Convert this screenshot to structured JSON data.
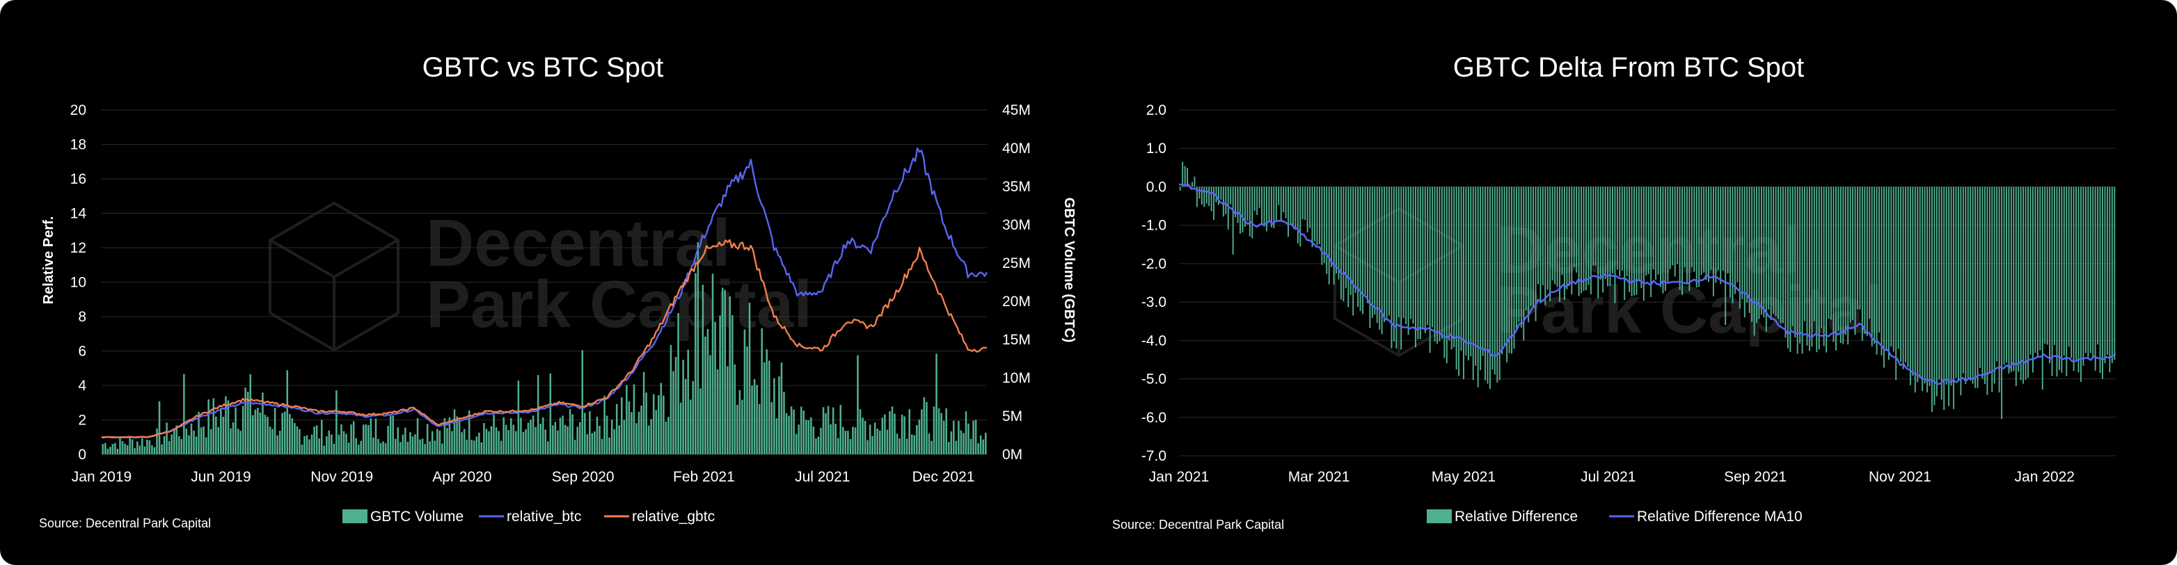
{
  "colors": {
    "background": "#000000",
    "grid": "#2a2a2a",
    "volume_bar": "#4fb091",
    "relative_btc": "#5865f2",
    "relative_gbtc": "#f07f4f",
    "delta_bar": "#4fb091",
    "delta_ma10": "#5865f2",
    "watermark": "#1e1e1e"
  },
  "watermark": {
    "line1": "Decentral",
    "line2": "Park Capital"
  },
  "chart_data": [
    {
      "type": "line",
      "title": "GBTC vs BTC Spot",
      "ylabel": "Relative Perf.",
      "y2label": "GBTC Volume (GBTC)",
      "source": "Source: Decentral Park Capital",
      "ylim": [
        0,
        20
      ],
      "y_ticks": [
        "0",
        "2",
        "4",
        "6",
        "8",
        "10",
        "12",
        "14",
        "16",
        "18",
        "20"
      ],
      "y2lim": [
        0,
        45000000
      ],
      "y2_ticks": [
        "0M",
        "5M",
        "10M",
        "15M",
        "20M",
        "25M",
        "30M",
        "35M",
        "40M",
        "45M"
      ],
      "x_ticks": [
        "Jan 2019",
        "Jun 2019",
        "Nov 2019",
        "Apr 2020",
        "Sep 2020",
        "Feb 2021",
        "Jul 2021",
        "Dec 2021"
      ],
      "legend_position": "bottom",
      "grid": true,
      "series": [
        {
          "name": "GBTC Volume",
          "type": "bar",
          "axis": "right",
          "color": "#4fb091",
          "x": [
            "2019-01",
            "2019-03",
            "2019-05",
            "2019-06",
            "2019-07",
            "2019-09",
            "2019-11",
            "2020-01",
            "2020-03",
            "2020-04",
            "2020-06",
            "2020-08",
            "2020-09",
            "2020-10",
            "2020-11",
            "2020-12",
            "2021-01",
            "2021-02",
            "2021-03",
            "2021-04",
            "2021-05",
            "2021-06",
            "2021-07",
            "2021-08",
            "2021-09",
            "2021-10",
            "2021-11",
            "2021-12",
            "2022-01"
          ],
          "values": [
            1500000,
            2000000,
            4500000,
            6000000,
            8000000,
            3500000,
            3000000,
            4000000,
            3800000,
            4500000,
            3500000,
            4000000,
            5000000,
            5500000,
            7000000,
            9000000,
            14000000,
            24000000,
            15000000,
            14000000,
            10000000,
            5000000,
            4500000,
            5000000,
            4500000,
            6000000,
            5500000,
            4500000,
            4000000
          ]
        },
        {
          "name": "relative_btc",
          "type": "line",
          "axis": "left",
          "color": "#5865f2",
          "x": [
            "2019-01",
            "2019-02",
            "2019-03",
            "2019-04",
            "2019-05",
            "2019-06",
            "2019-07",
            "2019-08",
            "2019-09",
            "2019-10",
            "2019-11",
            "2019-12",
            "2020-01",
            "2020-02",
            "2020-03",
            "2020-04",
            "2020-05",
            "2020-06",
            "2020-07",
            "2020-08",
            "2020-09",
            "2020-10",
            "2020-11",
            "2020-12",
            "2021-01",
            "2021-02",
            "2021-03",
            "2021-04",
            "2021-05",
            "2021-06",
            "2021-07",
            "2021-08",
            "2021-09",
            "2021-10",
            "2021-11",
            "2021-12",
            "2022-01"
          ],
          "values": [
            1.0,
            1.0,
            1.0,
            1.4,
            2.1,
            2.6,
            3.0,
            2.9,
            2.7,
            2.4,
            2.4,
            2.2,
            2.3,
            2.6,
            1.6,
            2.0,
            2.4,
            2.4,
            2.5,
            2.9,
            2.7,
            3.2,
            4.7,
            6.6,
            9.2,
            12.7,
            15.2,
            16.9,
            12.0,
            9.2,
            9.5,
            12.4,
            11.9,
            15.4,
            17.6,
            13.4,
            10.5
          ]
        },
        {
          "name": "relative_gbtc",
          "type": "line",
          "axis": "left",
          "color": "#f07f4f",
          "x": [
            "2019-01",
            "2019-02",
            "2019-03",
            "2019-04",
            "2019-05",
            "2019-06",
            "2019-07",
            "2019-08",
            "2019-09",
            "2019-10",
            "2019-11",
            "2019-12",
            "2020-01",
            "2020-02",
            "2020-03",
            "2020-04",
            "2020-05",
            "2020-06",
            "2020-07",
            "2020-08",
            "2020-09",
            "2020-10",
            "2020-11",
            "2020-12",
            "2021-01",
            "2021-02",
            "2021-03",
            "2021-04",
            "2021-05",
            "2021-06",
            "2021-07",
            "2021-08",
            "2021-09",
            "2021-10",
            "2021-11",
            "2021-12",
            "2022-01"
          ],
          "values": [
            1.0,
            1.0,
            1.0,
            1.4,
            2.2,
            2.8,
            3.2,
            3.0,
            2.8,
            2.5,
            2.5,
            2.3,
            2.4,
            2.7,
            1.7,
            2.1,
            2.5,
            2.5,
            2.6,
            3.0,
            2.8,
            3.3,
            4.8,
            6.9,
            9.5,
            11.8,
            12.2,
            12.1,
            8.0,
            6.3,
            6.1,
            7.8,
            7.4,
            9.3,
            11.8,
            8.9,
            6.1
          ]
        }
      ]
    },
    {
      "type": "bar",
      "title": "GBTC Delta From BTC Spot",
      "source": "Source: Decentral Park Capital",
      "ylim": [
        -7,
        2
      ],
      "y_ticks": [
        "-7.0",
        "-6.0",
        "-5.0",
        "-4.0",
        "-3.0",
        "-2.0",
        "-1.0",
        "0.0",
        "1.0",
        "2.0"
      ],
      "x_ticks": [
        "Jan 2021",
        "Mar 2021",
        "May 2021",
        "Jul 2021",
        "Sep 2021",
        "Nov 2021",
        "Jan 2022"
      ],
      "legend_position": "bottom",
      "grid": true,
      "series": [
        {
          "name": "Relative Difference",
          "type": "bar",
          "color": "#4fb091",
          "x": [
            "2021-01-01",
            "2021-01-15",
            "2021-02-01",
            "2021-02-15",
            "2021-03-01",
            "2021-03-15",
            "2021-04-01",
            "2021-04-15",
            "2021-05-01",
            "2021-05-15",
            "2021-06-01",
            "2021-06-15",
            "2021-07-01",
            "2021-07-15",
            "2021-08-01",
            "2021-08-15",
            "2021-09-01",
            "2021-09-15",
            "2021-10-01",
            "2021-10-15",
            "2021-11-01",
            "2021-11-15",
            "2021-12-01",
            "2021-12-15",
            "2022-01-01",
            "2022-01-15",
            "2022-01-31"
          ],
          "values": [
            0.3,
            -0.5,
            -1.0,
            -0.9,
            -1.6,
            -3.0,
            -3.8,
            -3.9,
            -4.6,
            -4.9,
            -3.0,
            -2.5,
            -2.4,
            -2.6,
            -2.4,
            -2.3,
            -3.2,
            -3.9,
            -3.9,
            -3.6,
            -4.7,
            -5.5,
            -5.2,
            -4.9,
            -4.5,
            -4.5,
            -4.6
          ]
        },
        {
          "name": "Relative Difference MA10",
          "type": "line",
          "color": "#5865f2",
          "x": [
            "2021-01-01",
            "2021-01-15",
            "2021-02-01",
            "2021-02-15",
            "2021-03-01",
            "2021-03-15",
            "2021-04-01",
            "2021-04-15",
            "2021-05-01",
            "2021-05-15",
            "2021-06-01",
            "2021-06-15",
            "2021-07-01",
            "2021-07-15",
            "2021-08-01",
            "2021-08-15",
            "2021-09-01",
            "2021-09-15",
            "2021-10-01",
            "2021-10-15",
            "2021-11-01",
            "2021-11-15",
            "2021-12-01",
            "2021-12-15",
            "2022-01-01",
            "2022-01-15",
            "2022-01-31"
          ],
          "values": [
            0.1,
            -0.2,
            -1.0,
            -0.9,
            -1.6,
            -2.5,
            -3.6,
            -3.7,
            -4.0,
            -4.4,
            -3.0,
            -2.5,
            -2.3,
            -2.5,
            -2.5,
            -2.3,
            -3.0,
            -3.8,
            -3.9,
            -3.6,
            -4.6,
            -5.1,
            -5.0,
            -4.7,
            -4.4,
            -4.5,
            -4.4
          ]
        }
      ]
    }
  ]
}
